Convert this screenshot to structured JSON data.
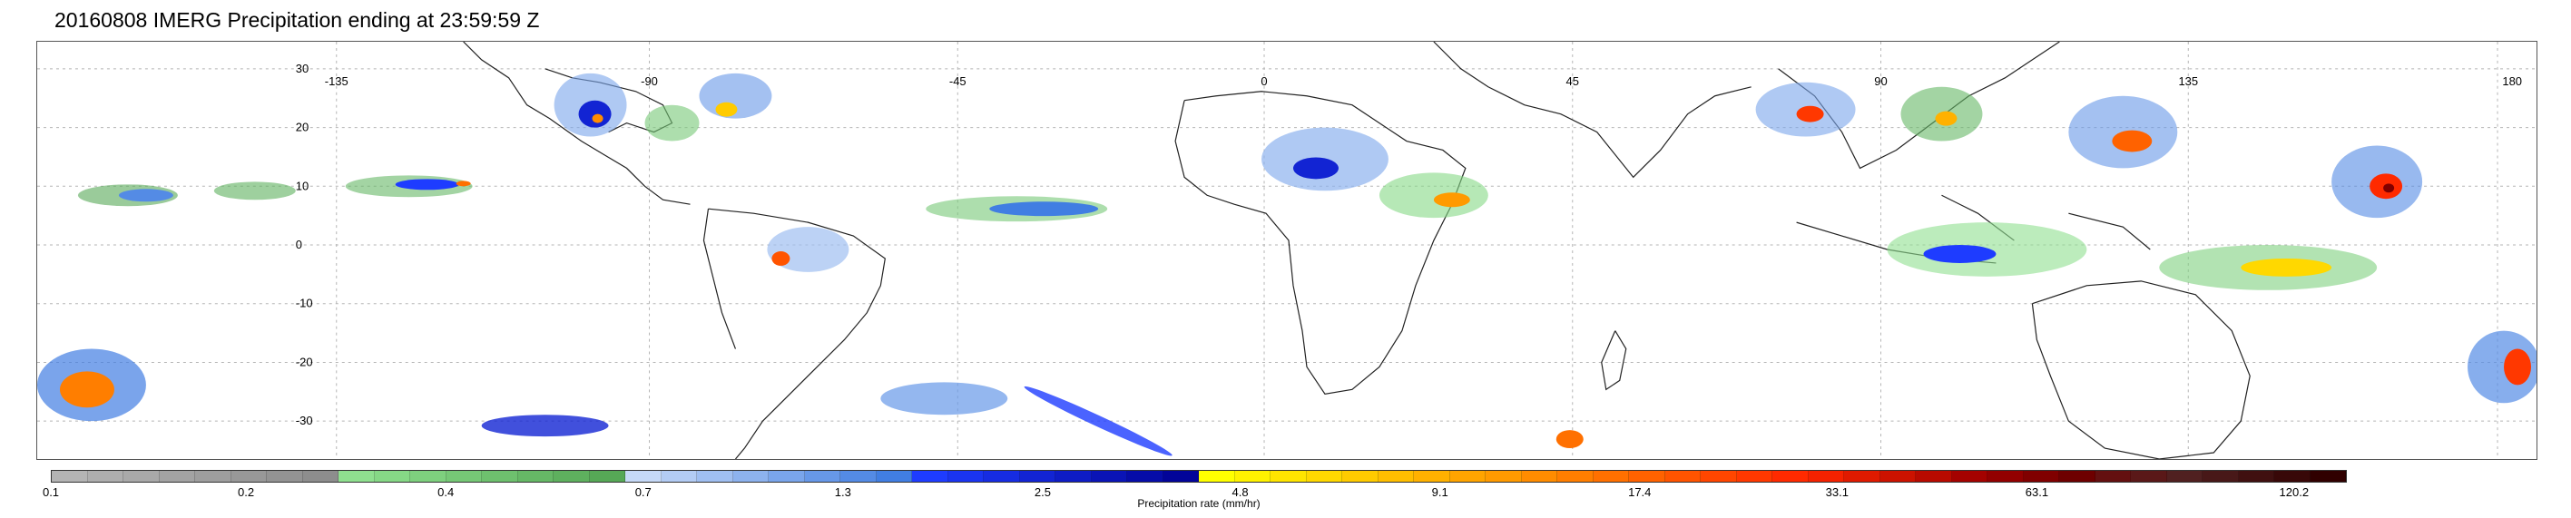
{
  "title": "20160808 IMERG Precipitation ending at 23:59:59 Z",
  "map": {
    "lon_labels": [
      "-135",
      "-90",
      "-45",
      "0",
      "45",
      "90",
      "135",
      "180"
    ],
    "lat_labels": [
      "30",
      "20",
      "10",
      "0",
      "-10",
      "-20",
      "-30"
    ]
  },
  "colorbar": {
    "label": "Precipitation rate (mm/hr)",
    "ticks": [
      "0.1",
      "0.2",
      "0.4",
      "0.7",
      "1.3",
      "2.5",
      "4.8",
      "9.1",
      "17.4",
      "33.1",
      "63.1",
      "120.2"
    ],
    "colors": [
      "#b4b4b4",
      "#aeaeae",
      "#a9a9a9",
      "#a3a3a3",
      "#9e9e9e",
      "#989898",
      "#939393",
      "#8d8d8d",
      "#8fe08f",
      "#86d886",
      "#7ed07e",
      "#76c876",
      "#6ec06e",
      "#66b866",
      "#5eb05e",
      "#56a856",
      "#c6d9f7",
      "#b3ccf4",
      "#a0bff1",
      "#8db2ee",
      "#7aa5eb",
      "#6798e8",
      "#548be5",
      "#417ee2",
      "#1e3cff",
      "#1a34f0",
      "#162ce2",
      "#1224d3",
      "#0e1cc5",
      "#0a14b6",
      "#060ca8",
      "#020499",
      "#ffff00",
      "#fff200",
      "#ffe500",
      "#ffd800",
      "#ffcb00",
      "#ffbe00",
      "#ffb100",
      "#ffa400",
      "#ff9a00",
      "#ff8c00",
      "#ff7e00",
      "#ff7000",
      "#ff6200",
      "#ff5400",
      "#ff4600",
      "#ff3800",
      "#ff2a00",
      "#f42200",
      "#e01a00",
      "#cc1200",
      "#b80a00",
      "#a40200",
      "#920000",
      "#800000",
      "#6e0000",
      "#641010",
      "#5a1818",
      "#502020",
      "#481818",
      "#401010",
      "#380808",
      "#300000"
    ]
  }
}
